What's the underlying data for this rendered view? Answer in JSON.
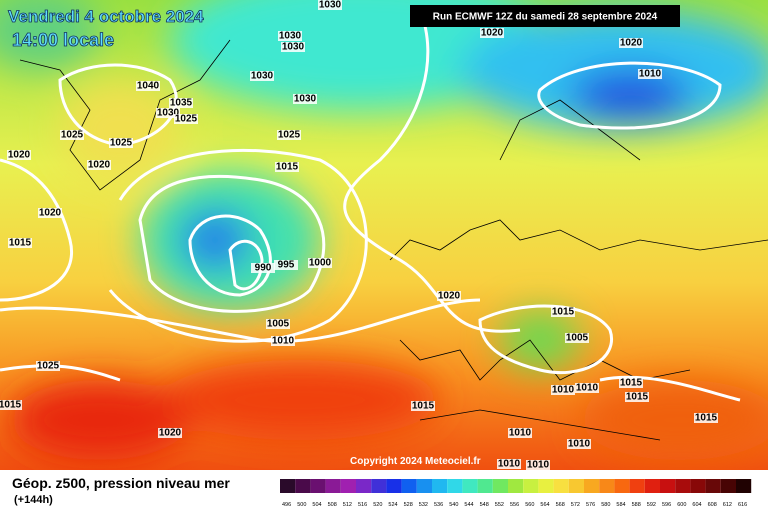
{
  "header": {
    "title": "Vendredi 4 octobre 2024",
    "time": "14:00 locale",
    "run": "Run ECMWF 12Z du samedi 28 septembre 2024"
  },
  "isobar_labels": [
    "1030",
    "1020",
    "1020",
    "1010",
    "1030",
    "1030",
    "1030",
    "1030",
    "1040",
    "1035",
    "1030",
    "1025",
    "1025",
    "1025",
    "1025",
    "1020",
    "1020",
    "1015",
    "1020",
    "1015",
    "990",
    "995",
    "1000",
    "1020",
    "1015",
    "1005",
    "1010",
    "1005",
    "1025",
    "1015",
    "1010",
    "1010",
    "1015",
    "1015",
    "1015",
    "1015",
    "1020",
    "1010",
    "1010",
    "1010",
    "1010"
  ],
  "copyright": "Copyright 2024 Meteociel.fr",
  "footer": {
    "title": "Géop. z500, pression niveau mer",
    "lead": "(+144h)"
  },
  "colorbar": {
    "labels": [
      "496",
      "500",
      "504",
      "508",
      "512",
      "516",
      "520",
      "524",
      "528",
      "532",
      "536",
      "540",
      "544",
      "548",
      "552",
      "556",
      "560",
      "564",
      "568",
      "572",
      "576",
      "580",
      "584",
      "588",
      "592",
      "596",
      "600",
      "604",
      "608",
      "612",
      "616"
    ],
    "colors": [
      "#2a0a2a",
      "#4a0a4a",
      "#6a1070",
      "#8a1a96",
      "#a020b0",
      "#7a28c8",
      "#4030d8",
      "#1830e8",
      "#1060f0",
      "#1890f0",
      "#20b8f0",
      "#30d8e8",
      "#40e8c0",
      "#50e890",
      "#70e860",
      "#a0e840",
      "#c8f040",
      "#e8f040",
      "#f8e040",
      "#f8c830",
      "#f8a820",
      "#f88818",
      "#f86810",
      "#f04010",
      "#e02010",
      "#c81010",
      "#a80c0c",
      "#880808",
      "#680808",
      "#480404",
      "#200202"
    ]
  }
}
